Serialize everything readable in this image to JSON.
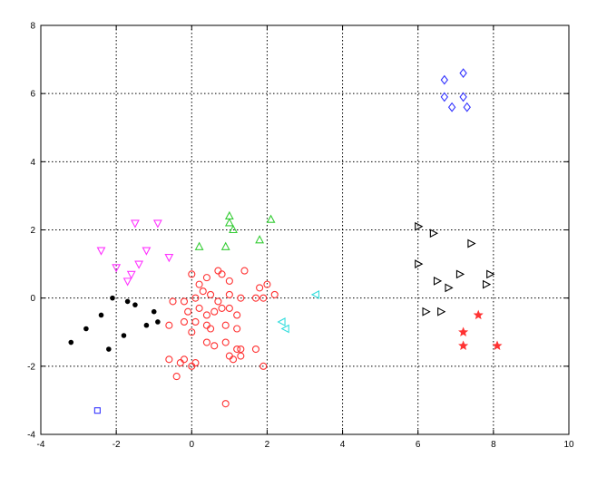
{
  "chart_data": {
    "type": "scatter",
    "title": "",
    "xlabel": "",
    "ylabel": "",
    "xlim": [
      -4,
      10
    ],
    "ylim": [
      -4,
      8
    ],
    "xticks": [
      -4,
      -2,
      0,
      2,
      4,
      6,
      8,
      10
    ],
    "yticks": [
      -4,
      -2,
      0,
      2,
      4,
      6,
      8
    ],
    "x_tick_labels": [
      "-4",
      "-2",
      "0",
      "2",
      "4",
      "6",
      "8",
      "10"
    ],
    "y_tick_labels": [
      "-4",
      "-2",
      "0",
      "2",
      "4",
      "6",
      "8"
    ],
    "grid": true,
    "legend": "none",
    "series": [
      {
        "marker": "diamond",
        "color": "#3333ff",
        "points": [
          [
            6.7,
            6.4
          ],
          [
            7.2,
            6.6
          ],
          [
            6.7,
            5.9
          ],
          [
            6.9,
            5.6
          ],
          [
            7.2,
            5.9
          ],
          [
            7.3,
            5.6
          ]
        ]
      },
      {
        "marker": "triangle-down",
        "color": "#ff33ff",
        "points": [
          [
            -1.5,
            2.2
          ],
          [
            -0.9,
            2.2
          ],
          [
            -2.4,
            1.4
          ],
          [
            -1.2,
            1.4
          ],
          [
            -0.6,
            1.2
          ],
          [
            -2.0,
            0.9
          ],
          [
            -1.4,
            1.0
          ],
          [
            -1.6,
            0.7
          ],
          [
            -1.7,
            0.5
          ]
        ]
      },
      {
        "marker": "triangle-up",
        "color": "#33cc33",
        "points": [
          [
            1.0,
            2.4
          ],
          [
            1.0,
            2.2
          ],
          [
            2.1,
            2.3
          ],
          [
            1.1,
            2.0
          ],
          [
            0.2,
            1.5
          ],
          [
            0.9,
            1.5
          ],
          [
            1.8,
            1.7
          ]
        ]
      },
      {
        "marker": "triangle-right",
        "color": "#000000",
        "points": [
          [
            6.0,
            2.1
          ],
          [
            6.4,
            1.9
          ],
          [
            7.4,
            1.6
          ],
          [
            6.0,
            1.0
          ],
          [
            6.5,
            0.5
          ],
          [
            7.1,
            0.7
          ],
          [
            7.9,
            0.7
          ],
          [
            6.8,
            0.3
          ],
          [
            7.8,
            0.4
          ],
          [
            6.2,
            -0.4
          ],
          [
            6.6,
            -0.4
          ]
        ]
      },
      {
        "marker": "triangle-left",
        "color": "#33dddd",
        "points": [
          [
            3.3,
            0.1
          ],
          [
            2.4,
            -0.7
          ],
          [
            2.5,
            -0.9
          ]
        ]
      },
      {
        "marker": "star",
        "color": "#ff3333",
        "points": [
          [
            7.6,
            -0.5
          ],
          [
            7.2,
            -1.0
          ],
          [
            7.2,
            -1.4
          ],
          [
            8.1,
            -1.4
          ]
        ]
      },
      {
        "marker": "dot",
        "color": "#000000",
        "points": [
          [
            -2.1,
            0.0
          ],
          [
            -1.5,
            -0.2
          ],
          [
            -1.7,
            -0.1
          ],
          [
            -2.4,
            -0.5
          ],
          [
            -1.0,
            -0.4
          ],
          [
            -0.9,
            -0.7
          ],
          [
            -1.2,
            -0.8
          ],
          [
            -2.8,
            -0.9
          ],
          [
            -1.8,
            -1.1
          ],
          [
            -3.2,
            -1.3
          ],
          [
            -2.2,
            -1.5
          ]
        ]
      },
      {
        "marker": "square",
        "color": "#3333ff",
        "points": [
          [
            -2.5,
            -3.3
          ]
        ]
      },
      {
        "marker": "circle",
        "color": "#ff3333",
        "points": [
          [
            0.0,
            0.7
          ],
          [
            0.2,
            0.4
          ],
          [
            0.4,
            0.6
          ],
          [
            0.7,
            0.8
          ],
          [
            0.8,
            0.7
          ],
          [
            1.0,
            0.5
          ],
          [
            1.4,
            0.8
          ],
          [
            1.7,
            0.0
          ],
          [
            1.8,
            0.3
          ],
          [
            2.0,
            0.4
          ],
          [
            2.2,
            0.1
          ],
          [
            -0.5,
            -0.1
          ],
          [
            -0.2,
            -0.1
          ],
          [
            0.1,
            0.0
          ],
          [
            0.3,
            0.2
          ],
          [
            0.5,
            0.1
          ],
          [
            0.7,
            -0.1
          ],
          [
            1.0,
            0.1
          ],
          [
            1.3,
            0.0
          ],
          [
            1.9,
            0.0
          ],
          [
            -0.1,
            -0.4
          ],
          [
            0.2,
            -0.3
          ],
          [
            0.4,
            -0.5
          ],
          [
            0.6,
            -0.4
          ],
          [
            0.8,
            -0.3
          ],
          [
            1.0,
            -0.3
          ],
          [
            1.2,
            -0.5
          ],
          [
            -0.6,
            -0.8
          ],
          [
            -0.2,
            -0.7
          ],
          [
            0.1,
            -0.7
          ],
          [
            0.4,
            -0.8
          ],
          [
            0.5,
            -0.9
          ],
          [
            0.9,
            -0.8
          ],
          [
            1.2,
            -0.9
          ],
          [
            0.0,
            -1.0
          ],
          [
            0.4,
            -1.3
          ],
          [
            0.6,
            -1.4
          ],
          [
            0.9,
            -1.3
          ],
          [
            1.2,
            -1.5
          ],
          [
            1.3,
            -1.5
          ],
          [
            1.7,
            -1.5
          ],
          [
            -0.6,
            -1.8
          ],
          [
            -0.3,
            -1.9
          ],
          [
            -0.2,
            -1.8
          ],
          [
            0.0,
            -2.0
          ],
          [
            0.1,
            -1.9
          ],
          [
            1.0,
            -1.7
          ],
          [
            1.1,
            -1.8
          ],
          [
            1.3,
            -1.7
          ],
          [
            1.9,
            -2.0
          ],
          [
            -0.4,
            -2.3
          ],
          [
            0.9,
            -3.1
          ]
        ]
      }
    ]
  }
}
